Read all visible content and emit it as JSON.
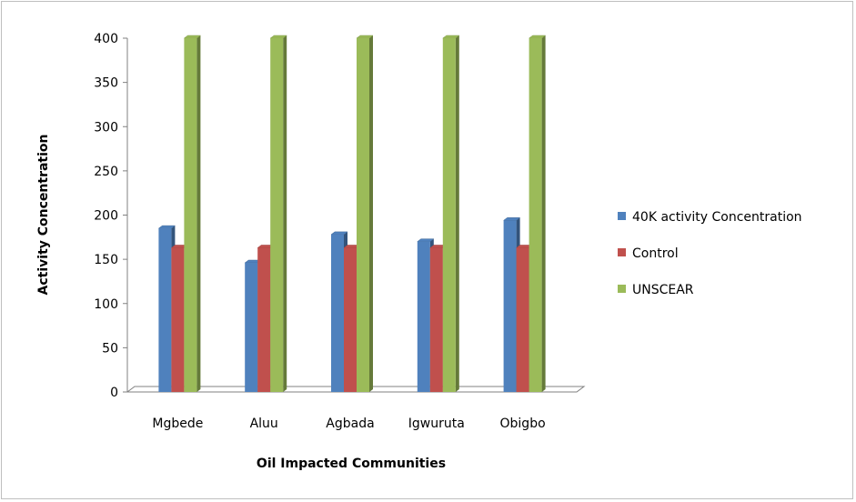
{
  "chart_data": {
    "type": "bar",
    "style": "3d-clustered-column",
    "title": "",
    "xlabel": "Oil Impacted Communities",
    "ylabel": "Activity Concentration",
    "ylim": [
      0,
      400
    ],
    "yticks": [
      0,
      50,
      100,
      150,
      200,
      250,
      300,
      350,
      400
    ],
    "categories": [
      "Mgbede",
      "Aluu",
      "Agbada",
      "Igwuruta",
      "Obigbo"
    ],
    "series": [
      {
        "name": "40K activity Concentration",
        "color": "#4f81bd",
        "values": [
          185,
          146,
          178,
          170,
          194
        ]
      },
      {
        "name": "Control",
        "color": "#c0504d",
        "values": [
          163,
          163,
          163,
          163,
          163
        ]
      },
      {
        "name": "UNSCEAR",
        "color": "#9bbb59",
        "values": [
          400,
          400,
          400,
          400,
          400
        ]
      }
    ],
    "grid": false,
    "legend": "right"
  }
}
